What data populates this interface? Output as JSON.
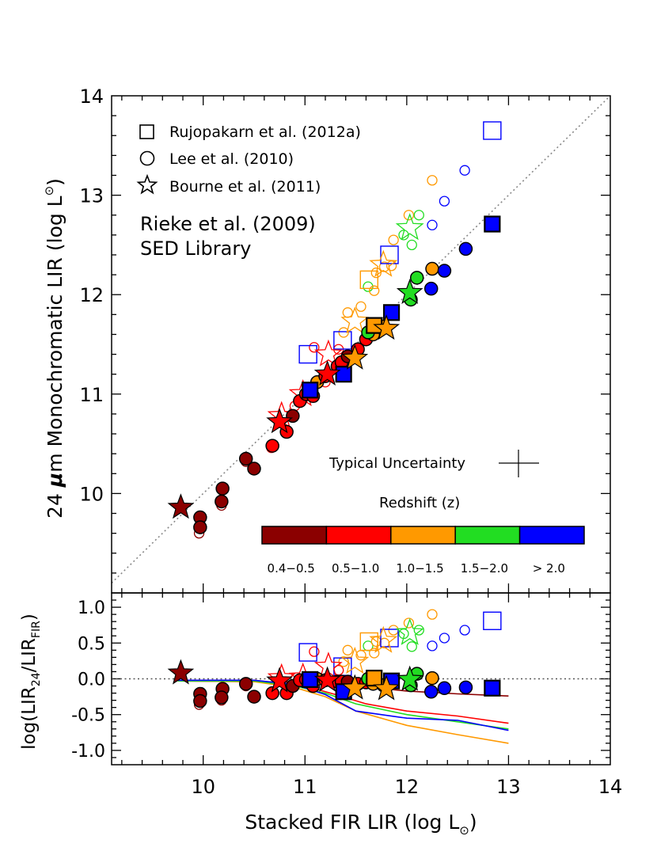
{
  "chart_data": [
    {
      "panel": "top",
      "type": "scatter",
      "ylabel_parts": [
        "24 ",
        "μ",
        "m Monochromatic LIR (log L",
        "⊙",
        ")"
      ],
      "xlim": [
        9.1,
        14.0
      ],
      "ylim": [
        9.0,
        14.0
      ],
      "xticks": [
        "10",
        "11",
        "12",
        "13",
        "14"
      ],
      "yticks": [
        "10",
        "11",
        "12",
        "13",
        "14"
      ],
      "one_to_one_line": true,
      "legend": {
        "placement": "top-left",
        "entries": [
          {
            "marker": "square",
            "label": "Rujopakarn et al. (2012a)"
          },
          {
            "marker": "circle",
            "label": "Lee et al. (2010)"
          },
          {
            "marker": "star",
            "label": "Bourne et al. (2011)"
          }
        ]
      },
      "annotation_lines": [
        "Rieke et al. (2009)",
        "SED Library"
      ],
      "error_bar_label": "Typical Uncertainty",
      "colorbar": {
        "title": "Redshift (z)",
        "bins": [
          {
            "label": "0.4−0.5",
            "color": "#8b0000"
          },
          {
            "label": "0.5−1.0",
            "color": "#ff0000"
          },
          {
            "label": "1.0−1.5",
            "color": "#ff9900"
          },
          {
            "label": "1.5−2.0",
            "color": "#22dd22"
          },
          {
            "label": "> 2.0",
            "color": "#0000ff"
          }
        ]
      },
      "series": [
        {
          "marker": "circle",
          "filled": true,
          "points": [
            [
              9.97,
              9.76,
              "#8b0000"
            ],
            [
              9.97,
              9.66,
              "#8b0000"
            ],
            [
              10.19,
              10.05,
              "#8b0000"
            ],
            [
              10.18,
              9.92,
              "#8b0000"
            ],
            [
              10.42,
              10.35,
              "#8b0000"
            ],
            [
              10.5,
              10.25,
              "#8b0000"
            ],
            [
              10.68,
              10.48,
              "#ff0000"
            ],
            [
              10.82,
              10.62,
              "#ff0000"
            ],
            [
              10.88,
              10.78,
              "#8b0000"
            ],
            [
              10.95,
              10.93,
              "#ff0000"
            ],
            [
              11.01,
              11.0,
              "#ff0000"
            ],
            [
              11.08,
              10.98,
              "#ff0000"
            ],
            [
              11.12,
              11.12,
              "#ff9900"
            ],
            [
              11.2,
              11.18,
              "#ff0000"
            ],
            [
              11.32,
              11.28,
              "#ff0000"
            ],
            [
              11.36,
              11.32,
              "#ff0000"
            ],
            [
              11.42,
              11.38,
              "#8b0000"
            ],
            [
              11.52,
              11.45,
              "#ff0000"
            ],
            [
              11.6,
              11.55,
              "#ff0000"
            ],
            [
              11.67,
              11.6,
              "#ff9900"
            ],
            [
              11.62,
              11.62,
              "#22dd22"
            ],
            [
              11.77,
              11.68,
              "#ff9900"
            ],
            [
              12.04,
              11.95,
              "#22dd22"
            ],
            [
              12.1,
              12.17,
              "#22dd22"
            ],
            [
              12.25,
              12.26,
              "#ff9900"
            ],
            [
              12.24,
              12.06,
              "#0000ff"
            ],
            [
              12.37,
              12.24,
              "#0000ff"
            ],
            [
              12.58,
              12.46,
              "#0000ff"
            ]
          ]
        },
        {
          "marker": "circle",
          "filled": false,
          "points": [
            [
              9.96,
              9.6,
              "#8b0000"
            ],
            [
              10.18,
              9.88,
              "#8b0000"
            ],
            [
              10.42,
              10.32,
              "#8b0000"
            ],
            [
              10.67,
              10.46,
              "#ff0000"
            ],
            [
              10.9,
              10.88,
              "#ff0000"
            ],
            [
              10.98,
              10.95,
              "#ff0000"
            ],
            [
              11.09,
              11.47,
              "#ff0000"
            ],
            [
              11.2,
              11.12,
              "#ff0000"
            ],
            [
              11.33,
              11.45,
              "#ff0000"
            ],
            [
              11.38,
              11.62,
              "#ff9900"
            ],
            [
              11.42,
              11.82,
              "#ff9900"
            ],
            [
              11.55,
              11.88,
              "#ff9900"
            ],
            [
              11.62,
              12.08,
              "#22dd22"
            ],
            [
              11.68,
              12.04,
              "#ff9900"
            ],
            [
              11.7,
              12.22,
              "#ff9900"
            ],
            [
              11.78,
              12.28,
              "#ff9900"
            ],
            [
              11.85,
              12.29,
              "#ff9900"
            ],
            [
              11.87,
              12.55,
              "#ff9900"
            ],
            [
              11.97,
              12.6,
              "#22dd22"
            ],
            [
              12.05,
              12.5,
              "#22dd22"
            ],
            [
              12.02,
              12.8,
              "#ff9900"
            ],
            [
              12.12,
              12.8,
              "#22dd22"
            ],
            [
              12.25,
              12.7,
              "#0000ff"
            ],
            [
              12.37,
              12.94,
              "#0000ff"
            ],
            [
              12.25,
              13.15,
              "#ff9900"
            ],
            [
              12.57,
              13.25,
              "#0000ff"
            ]
          ]
        },
        {
          "marker": "square",
          "filled": true,
          "points": [
            [
              11.05,
              11.04,
              "#0000ff"
            ],
            [
              11.38,
              11.2,
              "#0000ff"
            ],
            [
              11.68,
              11.69,
              "#ff9900"
            ],
            [
              11.85,
              11.82,
              "#0000ff"
            ],
            [
              12.84,
              12.71,
              "#0000ff"
            ]
          ]
        },
        {
          "marker": "square",
          "filled": false,
          "points": [
            [
              11.03,
              11.4,
              "#0000ff"
            ],
            [
              11.37,
              11.54,
              "#0000ff"
            ],
            [
              11.63,
              12.15,
              "#ff9900"
            ],
            [
              11.83,
              12.4,
              "#0000ff"
            ],
            [
              12.84,
              13.65,
              "#0000ff"
            ]
          ]
        },
        {
          "marker": "star",
          "filled": true,
          "points": [
            [
              9.78,
              9.86,
              "#8b0000"
            ],
            [
              10.75,
              10.72,
              "#ff0000"
            ],
            [
              11.22,
              11.2,
              "#ff0000"
            ],
            [
              11.49,
              11.36,
              "#ff9900"
            ],
            [
              11.8,
              11.66,
              "#ff9900"
            ],
            [
              12.03,
              12.02,
              "#22dd22"
            ]
          ]
        },
        {
          "marker": "star",
          "filled": false,
          "points": [
            [
              10.77,
              10.78,
              "#ff0000"
            ],
            [
              10.98,
              11.0,
              "#ff0000"
            ],
            [
              11.23,
              11.4,
              "#ff0000"
            ],
            [
              11.49,
              11.73,
              "#ff9900"
            ],
            [
              11.77,
              12.3,
              "#ff9900"
            ],
            [
              12.03,
              12.67,
              "#22dd22"
            ]
          ]
        }
      ]
    },
    {
      "panel": "bottom",
      "type": "scatter",
      "xlabel_parts": [
        "Stacked FIR LIR (log L",
        "⊙",
        ")"
      ],
      "ylabel_parts": [
        "log(LIR",
        "24",
        "/LIR",
        "FIR",
        ")"
      ],
      "xlim": [
        9.1,
        14.0
      ],
      "ylim": [
        -1.2,
        1.2
      ],
      "xticks": [
        "10",
        "11",
        "12",
        "13",
        "14"
      ],
      "yticks": [
        "1.0",
        "0.5",
        "0.0",
        "-0.5",
        "-1.0"
      ],
      "zero_line": true,
      "model_curves": [
        {
          "color": "#8b0000",
          "x": [
            9.75,
            10.5,
            11.0,
            11.5,
            12.0,
            12.5,
            13.0
          ],
          "y": [
            -0.03,
            -0.04,
            -0.05,
            -0.1,
            -0.17,
            -0.21,
            -0.24
          ]
        },
        {
          "color": "#ff0000",
          "x": [
            9.75,
            10.5,
            11.0,
            11.3,
            11.6,
            12.0,
            12.5,
            13.0
          ],
          "y": [
            -0.03,
            -0.02,
            -0.1,
            -0.22,
            -0.35,
            -0.45,
            -0.52,
            -0.62
          ]
        },
        {
          "color": "#ff9900",
          "x": [
            9.75,
            10.5,
            10.9,
            11.2,
            11.5,
            12.0,
            12.5,
            13.0
          ],
          "y": [
            -0.03,
            -0.04,
            -0.12,
            -0.25,
            -0.45,
            -0.65,
            -0.78,
            -0.9
          ]
        },
        {
          "color": "#22dd22",
          "x": [
            9.75,
            10.5,
            10.9,
            11.2,
            11.5,
            12.0,
            12.5,
            13.0
          ],
          "y": [
            -0.03,
            -0.03,
            -0.1,
            -0.2,
            -0.35,
            -0.5,
            -0.6,
            -0.7
          ]
        },
        {
          "color": "#0000ff",
          "x": [
            9.75,
            10.5,
            10.9,
            11.2,
            11.5,
            12.0,
            12.5,
            13.0
          ],
          "y": [
            -0.02,
            -0.02,
            -0.08,
            -0.22,
            -0.45,
            -0.55,
            -0.58,
            -0.72
          ]
        }
      ],
      "series": [
        {
          "marker": "circle",
          "filled": true,
          "points": [
            [
              9.97,
              -0.21,
              "#8b0000"
            ],
            [
              9.97,
              -0.31,
              "#8b0000"
            ],
            [
              10.19,
              -0.14,
              "#8b0000"
            ],
            [
              10.18,
              -0.26,
              "#8b0000"
            ],
            [
              10.42,
              -0.07,
              "#8b0000"
            ],
            [
              10.5,
              -0.25,
              "#8b0000"
            ],
            [
              10.68,
              -0.2,
              "#ff0000"
            ],
            [
              10.82,
              -0.2,
              "#ff0000"
            ],
            [
              10.88,
              -0.1,
              "#8b0000"
            ],
            [
              10.95,
              -0.02,
              "#ff0000"
            ],
            [
              11.01,
              -0.01,
              "#ff0000"
            ],
            [
              11.08,
              -0.1,
              "#ff0000"
            ],
            [
              11.12,
              0.0,
              "#ff9900"
            ],
            [
              11.2,
              -0.02,
              "#ff0000"
            ],
            [
              11.32,
              -0.04,
              "#ff0000"
            ],
            [
              11.36,
              -0.04,
              "#ff0000"
            ],
            [
              11.42,
              -0.04,
              "#8b0000"
            ],
            [
              11.52,
              -0.07,
              "#ff0000"
            ],
            [
              11.6,
              -0.05,
              "#ff0000"
            ],
            [
              11.67,
              -0.07,
              "#ff9900"
            ],
            [
              11.62,
              0.0,
              "#22dd22"
            ],
            [
              11.77,
              -0.09,
              "#ff9900"
            ],
            [
              12.04,
              -0.09,
              "#22dd22"
            ],
            [
              12.1,
              0.07,
              "#22dd22"
            ],
            [
              12.25,
              0.01,
              "#ff9900"
            ],
            [
              12.24,
              -0.18,
              "#0000ff"
            ],
            [
              12.37,
              -0.13,
              "#0000ff"
            ],
            [
              12.58,
              -0.12,
              "#0000ff"
            ]
          ]
        },
        {
          "marker": "circle",
          "filled": false,
          "points": [
            [
              9.96,
              -0.36,
              "#8b0000"
            ],
            [
              10.18,
              -0.3,
              "#8b0000"
            ],
            [
              10.42,
              -0.1,
              "#8b0000"
            ],
            [
              11.09,
              0.38,
              "#ff0000"
            ],
            [
              11.33,
              0.12,
              "#ff0000"
            ],
            [
              11.38,
              0.24,
              "#ff9900"
            ],
            [
              11.42,
              0.4,
              "#ff9900"
            ],
            [
              11.55,
              0.33,
              "#ff9900"
            ],
            [
              11.62,
              0.46,
              "#22dd22"
            ],
            [
              11.68,
              0.36,
              "#ff9900"
            ],
            [
              11.7,
              0.52,
              "#ff9900"
            ],
            [
              11.78,
              0.5,
              "#ff9900"
            ],
            [
              11.87,
              0.68,
              "#ff9900"
            ],
            [
              11.97,
              0.63,
              "#22dd22"
            ],
            [
              12.05,
              0.45,
              "#22dd22"
            ],
            [
              12.02,
              0.78,
              "#ff9900"
            ],
            [
              12.12,
              0.68,
              "#22dd22"
            ],
            [
              12.25,
              0.46,
              "#0000ff"
            ],
            [
              12.37,
              0.57,
              "#0000ff"
            ],
            [
              12.25,
              0.9,
              "#ff9900"
            ],
            [
              12.57,
              0.68,
              "#0000ff"
            ]
          ]
        },
        {
          "marker": "square",
          "filled": true,
          "points": [
            [
              11.05,
              -0.01,
              "#0000ff"
            ],
            [
              11.38,
              -0.18,
              "#0000ff"
            ],
            [
              11.68,
              0.01,
              "#ff9900"
            ],
            [
              11.85,
              -0.03,
              "#0000ff"
            ],
            [
              12.84,
              -0.13,
              "#0000ff"
            ]
          ]
        },
        {
          "marker": "square",
          "filled": false,
          "points": [
            [
              11.03,
              0.37,
              "#0000ff"
            ],
            [
              11.37,
              0.17,
              "#0000ff"
            ],
            [
              11.63,
              0.52,
              "#ff9900"
            ],
            [
              11.83,
              0.57,
              "#0000ff"
            ],
            [
              12.84,
              0.81,
              "#0000ff"
            ]
          ]
        },
        {
          "marker": "star",
          "filled": true,
          "points": [
            [
              9.78,
              0.08,
              "#8b0000"
            ],
            [
              10.75,
              -0.03,
              "#ff0000"
            ],
            [
              11.22,
              -0.02,
              "#ff0000"
            ],
            [
              11.49,
              -0.13,
              "#ff9900"
            ],
            [
              11.8,
              -0.14,
              "#ff9900"
            ],
            [
              12.03,
              -0.01,
              "#22dd22"
            ]
          ]
        },
        {
          "marker": "star",
          "filled": false,
          "points": [
            [
              10.77,
              0.01,
              "#ff0000"
            ],
            [
              10.98,
              0.02,
              "#ff0000"
            ],
            [
              11.23,
              0.17,
              "#ff0000"
            ],
            [
              11.49,
              0.24,
              "#ff9900"
            ],
            [
              11.77,
              0.53,
              "#ff9900"
            ],
            [
              12.03,
              0.64,
              "#22dd22"
            ]
          ]
        }
      ]
    }
  ]
}
